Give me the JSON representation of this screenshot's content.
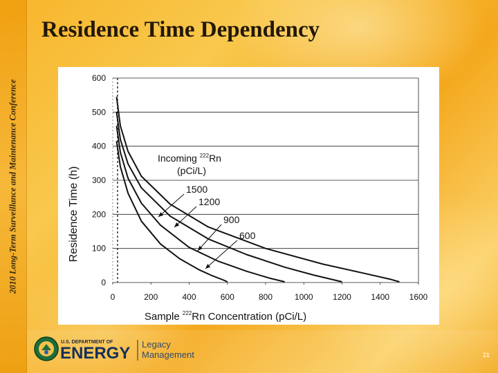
{
  "slide": {
    "side_caption": "2010 Long-Term Surveillance and Maintenance Conference",
    "title": "Residence Time Dependency",
    "slide_number": "21"
  },
  "logo": {
    "line1": "U.S. DEPARTMENT OF",
    "line2": "ENERGY",
    "line3": "Legacy",
    "line4": "Management"
  },
  "chart_data": {
    "type": "line",
    "xlabel_prefix": "Sample ",
    "xlabel_sup": "222",
    "xlabel_suffix": "Rn Concentration (pCi/L)",
    "ylabel": "Residence Time (h)",
    "xlim": [
      0,
      1600
    ],
    "ylim": [
      0,
      600
    ],
    "xticks": [
      0,
      200,
      400,
      600,
      800,
      1000,
      1200,
      1400,
      1600
    ],
    "yticks": [
      0,
      100,
      200,
      300,
      400,
      500,
      600
    ],
    "grid": "horizontal",
    "vline_x": 25,
    "legend_title_line1": "Incoming ",
    "legend_title_sup": "222",
    "legend_title_suffix": "Rn",
    "legend_title_line2": "(pCi/L)",
    "series": [
      {
        "name": "1500",
        "x": [
          20,
          40,
          80,
          150,
          300,
          500,
          800,
          1100,
          1300,
          1450,
          1500
        ],
        "y": [
          545,
          460,
          385,
          312,
          230,
          163,
          100,
          54,
          29,
          10,
          2
        ]
      },
      {
        "name": "1200",
        "x": [
          20,
          40,
          80,
          150,
          300,
          500,
          700,
          900,
          1050,
          1200
        ],
        "y": [
          500,
          420,
          348,
          278,
          195,
          128,
          82,
          45,
          22,
          2
        ]
      },
      {
        "name": "900",
        "x": [
          20,
          40,
          80,
          150,
          250,
          400,
          550,
          700,
          820,
          900
        ],
        "y": [
          460,
          382,
          306,
          233,
          168,
          103,
          63,
          33,
          13,
          2
        ]
      },
      {
        "name": "600",
        "x": [
          20,
          40,
          80,
          150,
          250,
          350,
          450,
          520,
          580,
          600
        ],
        "y": [
          415,
          340,
          262,
          180,
          113,
          70,
          38,
          20,
          7,
          2
        ]
      }
    ]
  }
}
